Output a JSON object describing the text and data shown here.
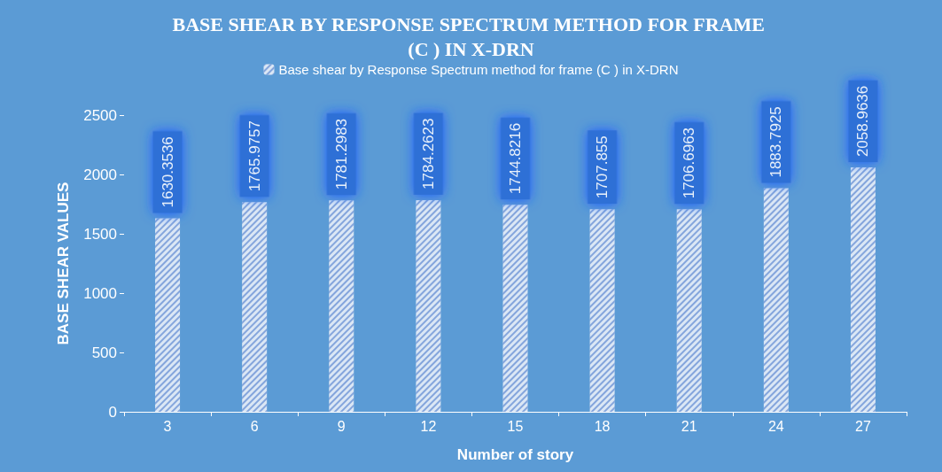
{
  "chart_data": {
    "type": "bar",
    "title": "BASE SHEAR BY RESPONSE SPECTRUM METHOD FOR FRAME (C ) IN X-DRN",
    "xlabel": "Number of story",
    "ylabel": "BASE SHEAR VALUES",
    "categories": [
      "3",
      "6",
      "9",
      "12",
      "15",
      "18",
      "21",
      "24",
      "27"
    ],
    "series": [
      {
        "name": "Base shear by Response Spectrum method for frame (C ) in X-DRN",
        "color": "#dbe7f5",
        "values": [
          1630.3536,
          1765.9757,
          1781.2983,
          1784.2623,
          1744.8216,
          1707.855,
          1706.6963,
          1883.7925,
          2058.9636
        ]
      }
    ],
    "ylim": [
      0,
      2500
    ],
    "yticks": [
      0,
      500,
      1000,
      1500,
      2000,
      2500
    ],
    "grid": false,
    "legend": "top",
    "data_labels": true
  }
}
